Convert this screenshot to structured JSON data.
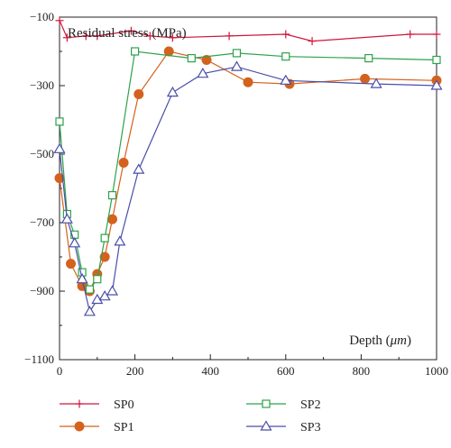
{
  "chart_data": {
    "type": "line",
    "ylabel": "Residual stress (MPa)",
    "xlabel_text": "Depth (",
    "xlabel_unit": "μm",
    "xlabel_close": ")",
    "xlim": [
      0,
      1000
    ],
    "ylim": [
      -1100,
      -100
    ],
    "x_ticks": [
      0,
      200,
      400,
      600,
      800,
      1000
    ],
    "x_tick_labels": [
      "0",
      "200",
      "400",
      "600",
      "800",
      "1000"
    ],
    "y_ticks": [
      -100,
      -300,
      -500,
      -700,
      -900,
      -1100
    ],
    "y_tick_labels": [
      "−100",
      "−300",
      "−500",
      "−700",
      "−900",
      "−1100"
    ],
    "grid": false,
    "legend_position": "bottom",
    "series": [
      {
        "name": "SP0",
        "color": "#d0163a",
        "marker": "plus",
        "x": [
          0,
          20,
          70,
          100,
          190,
          240,
          300,
          450,
          600,
          670,
          930,
          1000
        ],
        "y": [
          -110,
          -160,
          -155,
          -155,
          -140,
          -155,
          -160,
          -155,
          -150,
          -170,
          -150,
          -150
        ]
      },
      {
        "name": "SP1",
        "color": "#d4621e",
        "marker": "circle",
        "x": [
          0,
          30,
          60,
          80,
          100,
          120,
          140,
          170,
          210,
          290,
          390,
          500,
          610,
          810,
          1000
        ],
        "y": [
          -570,
          -820,
          -885,
          -900,
          -850,
          -800,
          -690,
          -525,
          -325,
          -200,
          -225,
          -290,
          -295,
          -280,
          -285
        ]
      },
      {
        "name": "SP2",
        "color": "#2ca24a",
        "marker": "square",
        "x": [
          0,
          20,
          40,
          60,
          80,
          100,
          120,
          140,
          200,
          350,
          470,
          600,
          820,
          1000
        ],
        "y": [
          -405,
          -675,
          -735,
          -845,
          -895,
          -865,
          -745,
          -620,
          -200,
          -220,
          -205,
          -215,
          -220,
          -225
        ]
      },
      {
        "name": "SP3",
        "color": "#4a4fa8",
        "marker": "triangle",
        "x": [
          0,
          20,
          40,
          60,
          80,
          100,
          120,
          140,
          160,
          210,
          300,
          380,
          470,
          600,
          840,
          1000
        ],
        "y": [
          -485,
          -690,
          -760,
          -865,
          -960,
          -925,
          -915,
          -900,
          -755,
          -545,
          -320,
          -265,
          -245,
          -285,
          -295,
          -300
        ]
      }
    ]
  }
}
